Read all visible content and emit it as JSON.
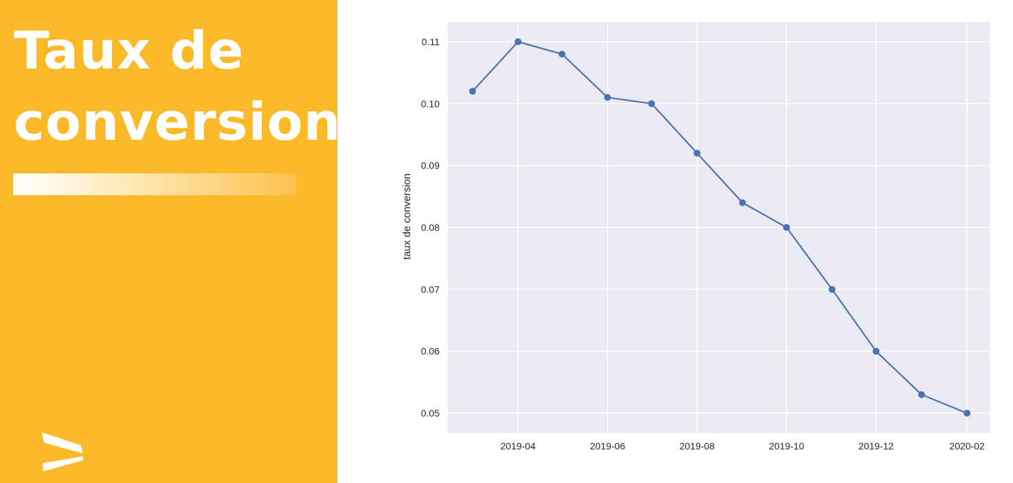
{
  "panel": {
    "title": "Taux de\nconversion",
    "background_color": "#fcb927",
    "logo_icon": "arrow-chevron-logo-icon"
  },
  "chart_data": {
    "type": "line",
    "title": "",
    "xlabel": "",
    "ylabel": "taux de conversion",
    "x": [
      "2019-03",
      "2019-04",
      "2019-05",
      "2019-06",
      "2019-07",
      "2019-08",
      "2019-09",
      "2019-10",
      "2019-11",
      "2019-12",
      "2020-01",
      "2020-02"
    ],
    "values": [
      0.102,
      0.11,
      0.108,
      0.101,
      0.1,
      0.092,
      0.084,
      0.08,
      0.07,
      0.06,
      0.053,
      0.05
    ],
    "x_ticks": [
      "2019-04",
      "2019-06",
      "2019-08",
      "2019-10",
      "2019-12",
      "2020-02"
    ],
    "y_ticks": [
      "0.05",
      "0.06",
      "0.07",
      "0.08",
      "0.09",
      "0.10",
      "0.11"
    ],
    "ylim": [
      0.0468,
      0.1132
    ],
    "grid": true,
    "background_color": "#eaeaf2",
    "line_color": "#4c72b0",
    "marker": "circle"
  }
}
